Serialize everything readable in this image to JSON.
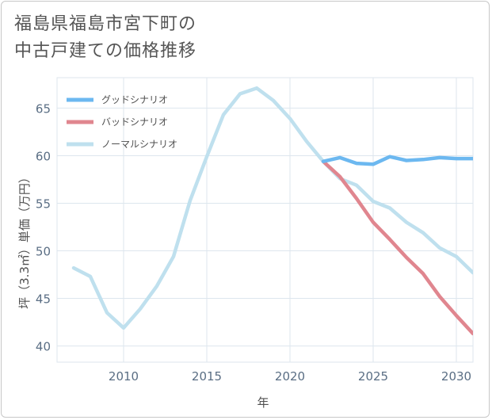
{
  "title_line1": "福島県福島市宮下町の",
  "title_line2": "中古戸建ての価格推移",
  "chart_data": {
    "type": "line",
    "title": "福島県福島市宮下町の中古戸建ての価格推移",
    "xlabel": "年",
    "ylabel": "坪（3.3㎡）単価（万円）",
    "xlim": [
      2006,
      2031
    ],
    "ylim": [
      38.3,
      68.2
    ],
    "xticks": [
      2010,
      2015,
      2020,
      2025,
      2030
    ],
    "yticks": [
      40,
      45,
      50,
      55,
      60,
      65
    ],
    "grid": true,
    "legend_position": "top-left",
    "series": [
      {
        "name": "グッドシナリオ",
        "color": "#6cb8f0",
        "x": [
          2022,
          2023,
          2024,
          2025,
          2026,
          2027,
          2028,
          2029,
          2030,
          2031
        ],
        "y": [
          59.4,
          59.8,
          59.2,
          59.1,
          59.9,
          59.5,
          59.6,
          59.8,
          59.7,
          59.7
        ]
      },
      {
        "name": "バッドシナリオ",
        "color": "#e0868f",
        "x": [
          2022,
          2023,
          2024,
          2025,
          2026,
          2027,
          2028,
          2029,
          2030,
          2031
        ],
        "y": [
          59.4,
          57.8,
          55.5,
          53.0,
          51.2,
          49.3,
          47.6,
          45.2,
          43.2,
          41.3
        ]
      },
      {
        "name": "ノーマルシナリオ",
        "color": "#bfe0ee",
        "x": [
          2007,
          2008,
          2009,
          2010,
          2011,
          2012,
          2013,
          2014,
          2015,
          2016,
          2017,
          2018,
          2019,
          2020,
          2021,
          2022,
          2023,
          2024,
          2025,
          2026,
          2027,
          2028,
          2029,
          2030,
          2031
        ],
        "y": [
          48.2,
          47.3,
          43.5,
          41.9,
          43.9,
          46.3,
          49.4,
          55.3,
          59.9,
          64.3,
          66.5,
          67.1,
          65.8,
          63.9,
          61.5,
          59.4,
          57.6,
          56.9,
          55.2,
          54.5,
          53.0,
          51.9,
          50.3,
          49.4,
          47.7
        ]
      }
    ]
  }
}
